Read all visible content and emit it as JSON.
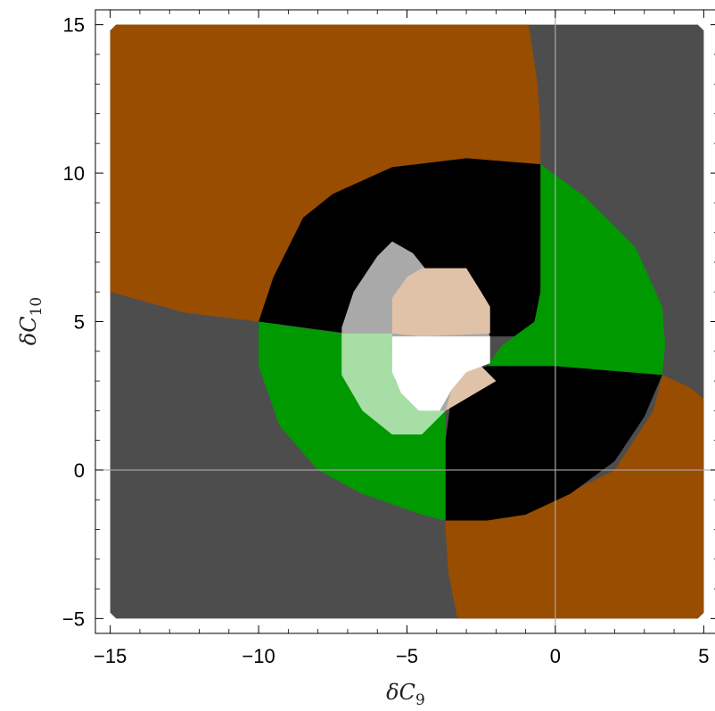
{
  "chart_data": {
    "type": "region",
    "xlabel_symbol": "δC",
    "xlabel_sub": "9",
    "ylabel_symbol": "δC",
    "ylabel_sub": "10",
    "xlim": [
      -15.5,
      5.5
    ],
    "ylim": [
      -5.5,
      15.5
    ],
    "x_ticks": [
      {
        "value": -15,
        "label": "−15"
      },
      {
        "value": -10,
        "label": "−10"
      },
      {
        "value": -5,
        "label": "−5"
      },
      {
        "value": 0,
        "label": "0"
      },
      {
        "value": 5,
        "label": "5"
      }
    ],
    "y_ticks": [
      {
        "value": -5,
        "label": "−5"
      },
      {
        "value": 0,
        "label": "0"
      },
      {
        "value": 5,
        "label": "5"
      },
      {
        "value": 10,
        "label": "10"
      },
      {
        "value": 15,
        "label": "15"
      }
    ],
    "gridlines": {
      "x": 0,
      "y": 0,
      "color": "#aaaaaa"
    },
    "regions": [
      {
        "name": "dark-gray-outer",
        "color": "#4d4d4d",
        "points": [
          [
            -14.8,
            15
          ],
          [
            4.8,
            15
          ],
          [
            5,
            14.8
          ],
          [
            5,
            -4.8
          ],
          [
            4.8,
            -5
          ],
          [
            -14.8,
            -5
          ],
          [
            -15,
            -4.8
          ],
          [
            -15,
            14.8
          ]
        ]
      },
      {
        "name": "orange-upper-left",
        "color": "#994d00",
        "points": [
          [
            -14.8,
            15
          ],
          [
            -0.9,
            15
          ],
          [
            -0.6,
            13
          ],
          [
            -0.5,
            11.5
          ],
          [
            -0.5,
            10.3
          ],
          [
            -3,
            10.5
          ],
          [
            -5.5,
            10.2
          ],
          [
            -8.5,
            8.5
          ],
          [
            -9.5,
            6.5
          ],
          [
            -10,
            5
          ],
          [
            -12.5,
            5.3
          ],
          [
            -15,
            6
          ],
          [
            -15,
            14.8
          ]
        ]
      },
      {
        "name": "orange-lower-right",
        "color": "#994d00",
        "points": [
          [
            4.8,
            -5
          ],
          [
            -3.3,
            -5
          ],
          [
            -3.6,
            -3.5
          ],
          [
            -3.7,
            -2
          ],
          [
            -3.7,
            -1.7
          ],
          [
            -1,
            -1.5
          ],
          [
            2,
            0
          ],
          [
            3.3,
            2
          ],
          [
            3.6,
            3.2
          ],
          [
            4.5,
            2.8
          ],
          [
            5,
            2.4
          ],
          [
            5,
            -4.8
          ]
        ]
      },
      {
        "name": "black-upper",
        "color": "#000000",
        "points": [
          [
            -10,
            5
          ],
          [
            -9.5,
            6.5
          ],
          [
            -8.5,
            8.5
          ],
          [
            -7.5,
            9.3
          ],
          [
            -5.5,
            10.2
          ],
          [
            -3,
            10.5
          ],
          [
            -0.5,
            10.3
          ],
          [
            -0.5,
            6
          ],
          [
            -0.7,
            5
          ],
          [
            -1.3,
            4.5
          ],
          [
            -2.3,
            4.5
          ],
          [
            -4.5,
            4.5
          ],
          [
            -7,
            4.6
          ]
        ]
      },
      {
        "name": "green-right",
        "color": "#009900",
        "points": [
          [
            -0.5,
            10.3
          ],
          [
            1,
            9.2
          ],
          [
            2.7,
            7.5
          ],
          [
            3.6,
            5.5
          ],
          [
            3.7,
            4.2
          ],
          [
            3.6,
            3.2
          ],
          [
            0,
            3.5
          ],
          [
            -2.3,
            3.5
          ],
          [
            -1.8,
            4.2
          ],
          [
            -0.7,
            5
          ],
          [
            -0.5,
            6
          ]
        ]
      },
      {
        "name": "green-left",
        "color": "#009900",
        "points": [
          [
            -10,
            5
          ],
          [
            -10,
            3.5
          ],
          [
            -9.3,
            1.5
          ],
          [
            -8,
            0
          ],
          [
            -6.5,
            -0.8
          ],
          [
            -4.5,
            -1.5
          ],
          [
            -3.7,
            -1.7
          ],
          [
            -3.7,
            1
          ],
          [
            -3.7,
            2
          ],
          [
            -4.5,
            2
          ],
          [
            -5.5,
            2.5
          ],
          [
            -7,
            3.5
          ],
          [
            -7.2,
            4.6
          ]
        ]
      },
      {
        "name": "black-lower",
        "color": "#000000",
        "points": [
          [
            -3.7,
            1
          ],
          [
            -3.7,
            -1.7
          ],
          [
            -2.3,
            -1.7
          ],
          [
            -1,
            -1.5
          ],
          [
            0.5,
            -0.8
          ],
          [
            2,
            0.3
          ],
          [
            3,
            1.8
          ],
          [
            3.6,
            3.2
          ],
          [
            0,
            3.5
          ],
          [
            -2.3,
            3.5
          ],
          [
            -3,
            3.3
          ],
          [
            -3.5,
            2.5
          ]
        ]
      },
      {
        "name": "light-gray-ring",
        "color": "#a9a9a9",
        "points": [
          [
            -5.5,
            7.7
          ],
          [
            -4.8,
            7.3
          ],
          [
            -3.6,
            5.8
          ],
          [
            -3,
            5.2
          ],
          [
            -2.5,
            5.2
          ],
          [
            -2.2,
            4.5
          ],
          [
            -2.5,
            3.5
          ],
          [
            -3,
            3
          ],
          [
            -3.7,
            2
          ],
          [
            -4.5,
            1.2
          ],
          [
            -5.5,
            1.2
          ],
          [
            -6.5,
            2
          ],
          [
            -7.2,
            3.2
          ],
          [
            -7.2,
            4.8
          ],
          [
            -6.8,
            6
          ],
          [
            -6,
            7.2
          ]
        ]
      },
      {
        "name": "light-green-patch",
        "color": "#a6dea6",
        "points": [
          [
            -7.2,
            4.6
          ],
          [
            -7.2,
            3.2
          ],
          [
            -6.5,
            2
          ],
          [
            -5.5,
            1.2
          ],
          [
            -4.5,
            1.2
          ],
          [
            -3.7,
            2
          ],
          [
            -4.6,
            2
          ],
          [
            -5.4,
            3
          ],
          [
            -5.5,
            3.8
          ],
          [
            -5.5,
            4.6
          ]
        ]
      },
      {
        "name": "peach-upper",
        "color": "#e0c2a8",
        "points": [
          [
            -5.5,
            4.6
          ],
          [
            -5.5,
            5.8
          ],
          [
            -5,
            6.5
          ],
          [
            -4.5,
            6.8
          ],
          [
            -3,
            6.8
          ],
          [
            -2.5,
            6
          ],
          [
            -2.2,
            5.5
          ],
          [
            -2.2,
            4.6
          ],
          [
            -4.5,
            4.5
          ]
        ]
      },
      {
        "name": "peach-lower",
        "color": "#e0c2a8",
        "points": [
          [
            -3.7,
            2
          ],
          [
            -3.5,
            2.7
          ],
          [
            -3,
            3.3
          ],
          [
            -2.5,
            3.5
          ],
          [
            -2.2,
            3.2
          ],
          [
            -2,
            3
          ]
        ]
      },
      {
        "name": "white-center",
        "color": "#ffffff",
        "points": [
          [
            -5.5,
            4.5
          ],
          [
            -2.2,
            4.5
          ],
          [
            -2.2,
            3.6
          ],
          [
            -3,
            3.3
          ],
          [
            -3.5,
            2.7
          ],
          [
            -3.9,
            2
          ],
          [
            -4.6,
            2
          ],
          [
            -5.2,
            2.6
          ],
          [
            -5.5,
            3.3
          ]
        ]
      }
    ]
  }
}
